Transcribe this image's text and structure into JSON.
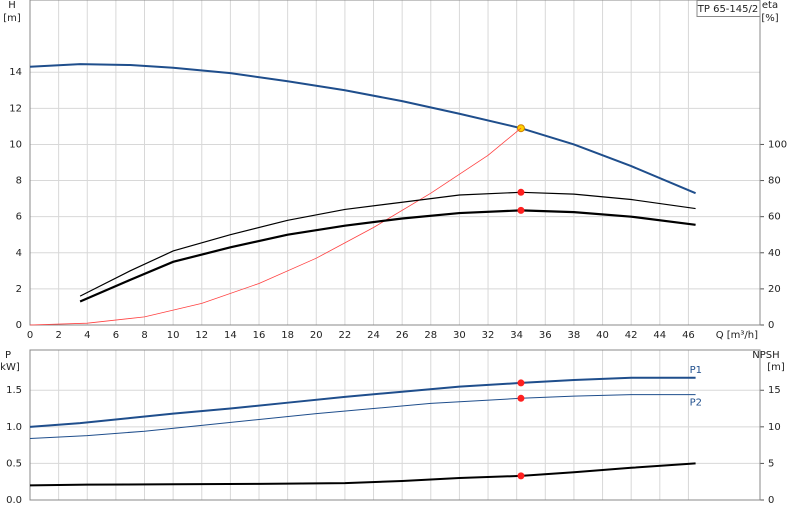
{
  "chart_data": [
    {
      "type": "line",
      "title": "TP 65-145/2",
      "y_label": [
        "H",
        "[m]"
      ],
      "y2_label": [
        "eta",
        "[%]"
      ],
      "x_label": "Q [m³/h]",
      "xlim": [
        0,
        51
      ],
      "xticks": [
        0,
        2,
        4,
        6,
        8,
        10,
        12,
        14,
        16,
        18,
        20,
        22,
        24,
        26,
        28,
        30,
        32,
        34,
        36,
        38,
        40,
        42,
        44,
        46
      ],
      "ylim": [
        0,
        18
      ],
      "yticks": [
        0,
        2,
        4,
        6,
        8,
        10,
        12,
        14
      ],
      "y2lim": [
        0,
        180
      ],
      "y2ticks": [
        0,
        20,
        40,
        60,
        80,
        100
      ],
      "grid": true,
      "series": [
        {
          "color": "#1f4e8c",
          "line_width": 2,
          "x": [
            0,
            3.5,
            7,
            10,
            14,
            18,
            22,
            26,
            30,
            34.3,
            38,
            42,
            46.5
          ],
          "values": [
            14.3,
            14.45,
            14.4,
            14.25,
            13.95,
            13.5,
            13.0,
            12.4,
            11.7,
            10.9,
            10.0,
            8.8,
            7.3
          ],
          "marked_point": 9,
          "marker_color": "#ffd000"
        },
        {
          "color": "#ff4040",
          "line_width": 0.8,
          "x": [
            0,
            4,
            8,
            12,
            16,
            20,
            24,
            28,
            32,
            34.3
          ],
          "values": [
            0,
            0.1,
            0.45,
            1.2,
            2.3,
            3.7,
            5.4,
            7.3,
            9.4,
            10.9
          ]
        },
        {
          "color": "#000000",
          "line_width": 1.2,
          "axis": "y2",
          "x": [
            3.5,
            7,
            10,
            14,
            18,
            22,
            26,
            30,
            34.3,
            38,
            42,
            46.5
          ],
          "values": [
            16,
            30,
            41,
            50,
            58,
            64,
            68,
            72,
            73.5,
            72.5,
            69.5,
            64.5
          ],
          "marked_point": 8,
          "marker_color": "#ff2020"
        },
        {
          "color": "#000000",
          "line_width": 2.2,
          "axis": "y2",
          "x": [
            3.5,
            7,
            10,
            14,
            18,
            22,
            26,
            30,
            34.3,
            38,
            42,
            46.5
          ],
          "values": [
            13,
            25,
            35,
            43,
            50,
            55,
            59,
            62,
            63.5,
            62.5,
            60,
            55.5
          ],
          "marked_point": 8,
          "marker_color": "#ff2020"
        }
      ]
    },
    {
      "type": "line",
      "y_label": [
        "P",
        "[kW]"
      ],
      "y2_label": [
        "NPSH",
        "[m]"
      ],
      "xlim": [
        0,
        51
      ],
      "ylim": [
        0,
        2.05
      ],
      "yticks": [
        {
          "value": 0,
          "label": "0.0"
        },
        0.5,
        {
          "value": 1,
          "label": "1.0"
        },
        1.5
      ],
      "y2lim": [
        0,
        20.5
      ],
      "y2ticks": [
        0,
        5,
        10,
        15
      ],
      "grid": true,
      "series": [
        {
          "name": "P1",
          "color": "#1f4e8c",
          "line_width": 2,
          "x": [
            0,
            3.5,
            7,
            10,
            14,
            18,
            22,
            26,
            30,
            34.3,
            38,
            42,
            46.5
          ],
          "values": [
            1.0,
            1.05,
            1.12,
            1.18,
            1.25,
            1.33,
            1.41,
            1.48,
            1.55,
            1.6,
            1.64,
            1.67,
            1.67
          ],
          "marked_point": 9,
          "marker_color": "#ff2020"
        },
        {
          "name": "P2",
          "color": "#1f4e8c",
          "line_width": 1,
          "x": [
            0,
            4,
            8,
            12,
            16,
            20,
            24,
            28,
            34.3,
            38,
            42,
            46.5
          ],
          "values": [
            0.84,
            0.88,
            0.94,
            1.02,
            1.1,
            1.18,
            1.25,
            1.32,
            1.39,
            1.42,
            1.44,
            1.44
          ],
          "marked_point": 8,
          "marker_color": "#ff2020"
        },
        {
          "color": "#000000",
          "line_width": 2,
          "axis": "y2",
          "x": [
            0,
            4,
            10,
            16,
            22,
            26,
            30,
            34.3,
            38,
            42,
            46.5
          ],
          "values": [
            2.0,
            2.1,
            2.15,
            2.2,
            2.3,
            2.6,
            3.0,
            3.3,
            3.8,
            4.4,
            5.0
          ],
          "marked_point": 7,
          "marker_color": "#ff2020"
        }
      ]
    }
  ]
}
